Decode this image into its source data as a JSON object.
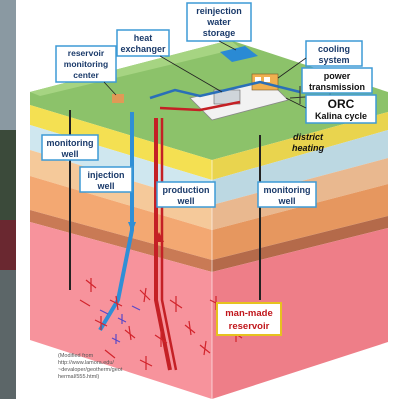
{
  "labels": {
    "reinjection": [
      "reinjection",
      "water",
      "storage"
    ],
    "heat_exchanger": [
      "heat",
      "exchanger"
    ],
    "reservoir_center": [
      "reservoir",
      "monitoring",
      "center"
    ],
    "cooling": [
      "cooling",
      "system"
    ],
    "power": [
      "power",
      "transmission"
    ],
    "orc": [
      "ORC",
      "Kalina cycle"
    ],
    "district": [
      "district",
      "heating"
    ],
    "monitoring_left": [
      "monitoring",
      "well"
    ],
    "injection": [
      "injection",
      "well"
    ],
    "production": [
      "production",
      "well"
    ],
    "monitoring_right": [
      "monitoring",
      "well"
    ],
    "reservoir": [
      "man-made",
      "reservoir"
    ]
  },
  "credit": [
    "(Modified from",
    "http://www.lamora.edu/",
    "~devaloper/geotherm/geot",
    "hermal/555.html)"
  ],
  "colors": {
    "surface": "#8cc26a",
    "hot_pipe": "#c42025",
    "cold_pipe": "#3a86c8",
    "reservoir": "#f27d86",
    "label_border": "#3d9ad6",
    "reservoir_label_border": "#e6c21f"
  }
}
